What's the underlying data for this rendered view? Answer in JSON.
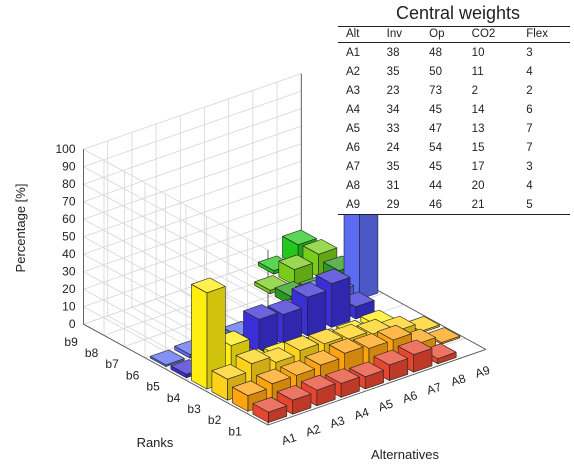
{
  "chart_data": {
    "type": "bar3d",
    "zlabel": "Percentage [%]",
    "xlabel": "Ranks",
    "ylabel": "Alternatives",
    "ranks": [
      "b1",
      "b2",
      "b3",
      "b4",
      "b5",
      "b6",
      "b7",
      "b8",
      "b9"
    ],
    "alternatives": [
      "A1",
      "A2",
      "A3",
      "A4",
      "A5",
      "A6",
      "A7",
      "A8",
      "A9"
    ],
    "zticks": [
      "0",
      "10",
      "20",
      "30",
      "40",
      "50",
      "60",
      "70",
      "80",
      "90",
      "100"
    ],
    "zlim": [
      0,
      100
    ],
    "grid": true,
    "rank_colors": [
      "#e8452f",
      "#ffa30f",
      "#ffd21a",
      "#ffee10",
      "#3a2fd6",
      "#5b6cf2",
      "#2a9a1e",
      "#78cc1a",
      "#23c81d"
    ],
    "values": [
      [
        6,
        9,
        12,
        55,
        2,
        1,
        0,
        0,
        0
      ],
      [
        8,
        11,
        16,
        20,
        5,
        2,
        0,
        0,
        0
      ],
      [
        9,
        11,
        12,
        5,
        3,
        2,
        0,
        0,
        0
      ],
      [
        8,
        12,
        14,
        4,
        19,
        3,
        0,
        0,
        0
      ],
      [
        7,
        14,
        13,
        2,
        17,
        4,
        0,
        0,
        0
      ],
      [
        9,
        12,
        11,
        2,
        22,
        6,
        0,
        0,
        0
      ],
      [
        10,
        12,
        9,
        2,
        25,
        12,
        5,
        2,
        0
      ],
      [
        3,
        5,
        6,
        3,
        7,
        9,
        3,
        9,
        2
      ],
      [
        0,
        1,
        1,
        0,
        0,
        78,
        10,
        13,
        12
      ]
    ]
  },
  "central_weights": {
    "title": "Central weights",
    "columns": [
      "Alt",
      "Inv",
      "Op",
      "CO2",
      "Flex"
    ],
    "rows": [
      [
        "A1",
        "38",
        "48",
        "10",
        "3"
      ],
      [
        "A2",
        "35",
        "50",
        "11",
        "4"
      ],
      [
        "A3",
        "23",
        "73",
        "2",
        "2"
      ],
      [
        "A4",
        "34",
        "45",
        "14",
        "6"
      ],
      [
        "A5",
        "33",
        "47",
        "13",
        "7"
      ],
      [
        "A6",
        "24",
        "54",
        "15",
        "7"
      ],
      [
        "A7",
        "35",
        "45",
        "17",
        "3"
      ],
      [
        "A8",
        "31",
        "44",
        "20",
        "4"
      ],
      [
        "A9",
        "29",
        "46",
        "21",
        "5"
      ]
    ]
  }
}
